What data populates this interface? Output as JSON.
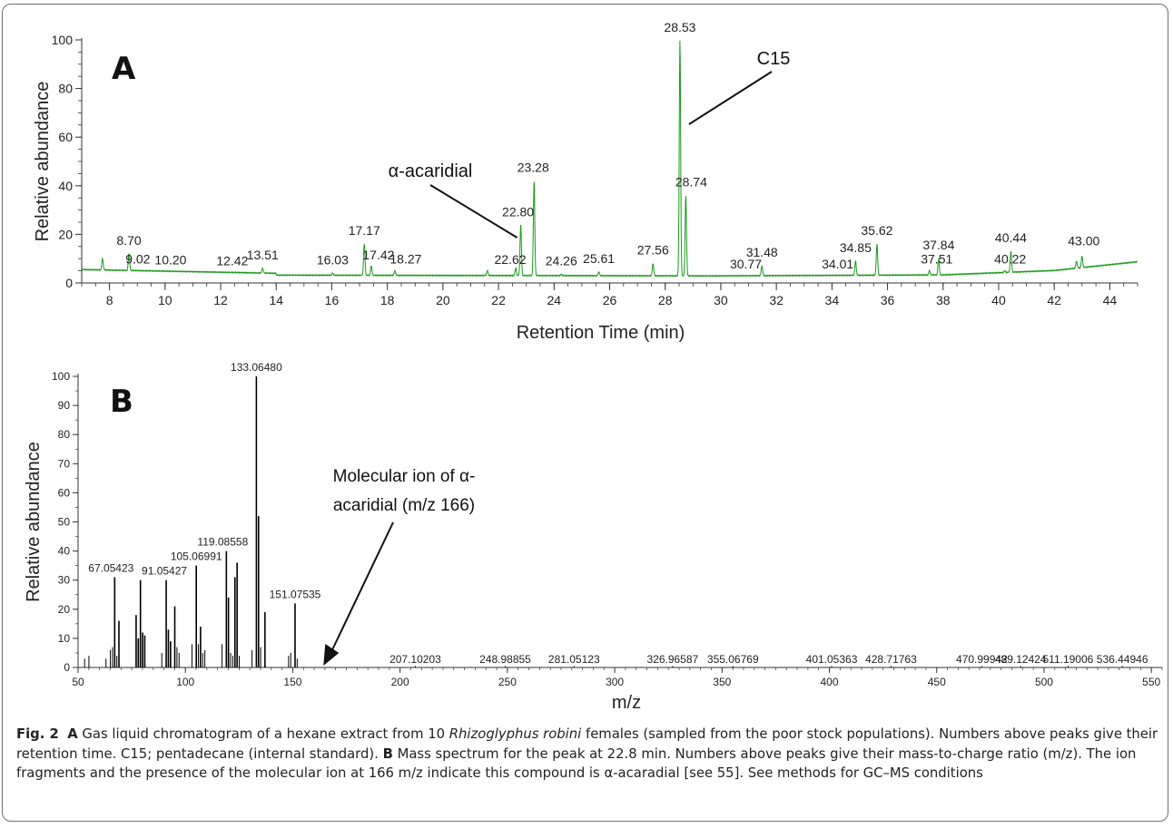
{
  "chart_data": [
    {
      "type": "line",
      "panel_label": "A",
      "xlabel": "Retention Time (min)",
      "ylabel": "Relative abundance",
      "xlim": [
        7,
        45
      ],
      "ylim": [
        0,
        100
      ],
      "xticks": [
        8,
        10,
        12,
        14,
        16,
        18,
        20,
        22,
        24,
        26,
        28,
        30,
        32,
        34,
        36,
        38,
        40,
        42,
        44
      ],
      "yticks": [
        0,
        20,
        40,
        60,
        80,
        100
      ],
      "line_color": "#1a9a1a",
      "peaks": [
        {
          "x": 7.75,
          "y": 10,
          "label": ""
        },
        {
          "x": 8.7,
          "y": 12,
          "label": "8.70"
        },
        {
          "x": 9.02,
          "y": 5,
          "label": "9.02"
        },
        {
          "x": 10.2,
          "y": 4,
          "label": "10.20"
        },
        {
          "x": 12.42,
          "y": 3.5,
          "label": "12.42"
        },
        {
          "x": 13.51,
          "y": 6,
          "label": "13.51"
        },
        {
          "x": 16.03,
          "y": 4,
          "label": "16.03"
        },
        {
          "x": 17.17,
          "y": 16,
          "label": "17.17"
        },
        {
          "x": 17.42,
          "y": 7,
          "label": "17.42"
        },
        {
          "x": 18.27,
          "y": 5,
          "label": "18.27"
        },
        {
          "x": 21.6,
          "y": 5,
          "label": ""
        },
        {
          "x": 22.62,
          "y": 6,
          "label": "22.62"
        },
        {
          "x": 22.8,
          "y": 24,
          "label": "22.80"
        },
        {
          "x": 23.28,
          "y": 42,
          "label": "23.28"
        },
        {
          "x": 24.26,
          "y": 3.5,
          "label": "24.26"
        },
        {
          "x": 25.61,
          "y": 4.5,
          "label": "25.61"
        },
        {
          "x": 27.56,
          "y": 8,
          "label": "27.56"
        },
        {
          "x": 28.53,
          "y": 100,
          "label": "28.53"
        },
        {
          "x": 28.74,
          "y": 36,
          "label": "28.74"
        },
        {
          "x": 30.77,
          "y": 3,
          "label": "30.77"
        },
        {
          "x": 31.48,
          "y": 7,
          "label": "31.48"
        },
        {
          "x": 34.01,
          "y": 3,
          "label": "34.01"
        },
        {
          "x": 34.85,
          "y": 9,
          "label": "34.85"
        },
        {
          "x": 35.62,
          "y": 16,
          "label": "35.62"
        },
        {
          "x": 37.51,
          "y": 5,
          "label": "37.51"
        },
        {
          "x": 37.84,
          "y": 10,
          "label": "37.84"
        },
        {
          "x": 40.22,
          "y": 5,
          "label": "40.22"
        },
        {
          "x": 40.44,
          "y": 13,
          "label": "40.44"
        },
        {
          "x": 42.8,
          "y": 9,
          "label": ""
        },
        {
          "x": 43.0,
          "y": 11,
          "label": "43.00"
        }
      ],
      "annotations": [
        {
          "text": "α-acaridial",
          "points_to_x": 22.8
        },
        {
          "text": "C15",
          "points_to_x": 28.53
        }
      ]
    },
    {
      "type": "bar",
      "panel_label": "B",
      "xlabel": "m/z",
      "ylabel": "Relative abundance",
      "xlim": [
        50,
        555
      ],
      "ylim": [
        0,
        100
      ],
      "xticks": [
        50,
        100,
        150,
        200,
        250,
        300,
        350,
        400,
        450,
        500,
        550
      ],
      "yticks": [
        0,
        10,
        20,
        30,
        40,
        50,
        60,
        70,
        80,
        90,
        100
      ],
      "peaks": [
        {
          "x": 53.04,
          "y": 3,
          "label": ""
        },
        {
          "x": 55.05,
          "y": 4,
          "label": ""
        },
        {
          "x": 63.0,
          "y": 3,
          "label": ""
        },
        {
          "x": 65.04,
          "y": 6,
          "label": ""
        },
        {
          "x": 66.05,
          "y": 7,
          "label": ""
        },
        {
          "x": 67.05423,
          "y": 31,
          "label": "67.05423"
        },
        {
          "x": 68.06,
          "y": 4,
          "label": ""
        },
        {
          "x": 69.03,
          "y": 16,
          "label": ""
        },
        {
          "x": 77.04,
          "y": 18,
          "label": ""
        },
        {
          "x": 78.05,
          "y": 10,
          "label": ""
        },
        {
          "x": 79.05,
          "y": 30,
          "label": ""
        },
        {
          "x": 80.06,
          "y": 12,
          "label": ""
        },
        {
          "x": 81.07,
          "y": 11,
          "label": ""
        },
        {
          "x": 89.0,
          "y": 5,
          "label": ""
        },
        {
          "x": 91.05427,
          "y": 30,
          "label": "91.05427"
        },
        {
          "x": 92.06,
          "y": 13,
          "label": ""
        },
        {
          "x": 93.07,
          "y": 9,
          "label": ""
        },
        {
          "x": 95.05,
          "y": 21,
          "label": ""
        },
        {
          "x": 96.06,
          "y": 7,
          "label": ""
        },
        {
          "x": 97.06,
          "y": 5,
          "label": ""
        },
        {
          "x": 103.05,
          "y": 8,
          "label": ""
        },
        {
          "x": 105.06991,
          "y": 35,
          "label": "105.06991"
        },
        {
          "x": 106.07,
          "y": 8,
          "label": ""
        },
        {
          "x": 107.05,
          "y": 14,
          "label": ""
        },
        {
          "x": 108.06,
          "y": 5,
          "label": ""
        },
        {
          "x": 109.06,
          "y": 6,
          "label": ""
        },
        {
          "x": 117.07,
          "y": 8,
          "label": ""
        },
        {
          "x": 119.08558,
          "y": 40,
          "label": "119.08558"
        },
        {
          "x": 120.06,
          "y": 24,
          "label": ""
        },
        {
          "x": 121.06,
          "y": 5,
          "label": ""
        },
        {
          "x": 122.07,
          "y": 4,
          "label": ""
        },
        {
          "x": 123.08,
          "y": 31,
          "label": ""
        },
        {
          "x": 124.08,
          "y": 36,
          "label": ""
        },
        {
          "x": 125.08,
          "y": 4,
          "label": ""
        },
        {
          "x": 131.05,
          "y": 6,
          "label": ""
        },
        {
          "x": 133.0648,
          "y": 100,
          "label": "133.06480"
        },
        {
          "x": 134.07,
          "y": 52,
          "label": ""
        },
        {
          "x": 135.07,
          "y": 7,
          "label": ""
        },
        {
          "x": 137.06,
          "y": 19,
          "label": ""
        },
        {
          "x": 148.05,
          "y": 4,
          "label": ""
        },
        {
          "x": 149.06,
          "y": 5,
          "label": ""
        },
        {
          "x": 151.07535,
          "y": 22,
          "label": "151.07535"
        },
        {
          "x": 152.08,
          "y": 3,
          "label": ""
        },
        {
          "x": 207.10203,
          "y": 0.5,
          "label": "207.10203"
        },
        {
          "x": 248.98855,
          "y": 0.5,
          "label": "248.98855"
        },
        {
          "x": 281.05123,
          "y": 0.5,
          "label": "281.05123"
        },
        {
          "x": 326.96587,
          "y": 0.5,
          "label": "326.96587"
        },
        {
          "x": 355.06769,
          "y": 0.5,
          "label": "355.06769"
        },
        {
          "x": 401.05363,
          "y": 0.5,
          "label": "401.05363"
        },
        {
          "x": 428.71763,
          "y": 0.5,
          "label": "428.71763"
        },
        {
          "x": 470.99942,
          "y": 0.5,
          "label": "470.99942"
        },
        {
          "x": 489.12424,
          "y": 0.5,
          "label": "489.12424"
        },
        {
          "x": 511.19006,
          "y": 0.5,
          "label": "511.19006"
        },
        {
          "x": 536.44946,
          "y": 0.5,
          "label": "536.44946"
        }
      ],
      "annotation": {
        "lines": [
          "Molecular ion of α-",
          "acaridial (m/z 166)"
        ],
        "points_to_x": 166
      }
    }
  ],
  "caption": {
    "fig_label": "Fig. 2",
    "a_label": "A",
    "a_text_1": " Gas liquid chromatogram of a hexane extract from 10 ",
    "species": "Rhizoglyphus robini",
    "a_text_2": " females (sampled from the poor stock populations). Numbers above peaks give their retention time. C15; pentadecane (internal standard). ",
    "b_label": "B",
    "b_text": " Mass spectrum for the peak at 22.8 min. Numbers above peaks give their mass-to-charge ratio (m/z). The ion fragments and the presence of the molecular ion at 166 m/z indicate this compound is α-acaradial [see 55]. See methods for GC–MS conditions"
  }
}
